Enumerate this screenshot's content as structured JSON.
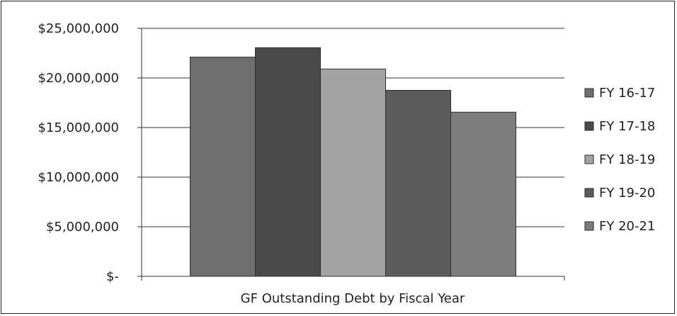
{
  "chart_data": {
    "type": "bar",
    "xlabel": "GF Outstanding Debt by Fiscal Year",
    "ylabel": "",
    "title": "",
    "ylim": [
      0,
      25000000
    ],
    "y_ticks": [
      {
        "value": 0,
        "label": "$-"
      },
      {
        "value": 5000000,
        "label": "$5,000,000"
      },
      {
        "value": 10000000,
        "label": "$10,000,000"
      },
      {
        "value": 15000000,
        "label": "$15,000,000"
      },
      {
        "value": 20000000,
        "label": "$20,000,000"
      },
      {
        "value": 25000000,
        "label": "$25,000,000"
      }
    ],
    "grid": true,
    "legend_position": "right",
    "series": [
      {
        "name": "FY 16-17",
        "value": 22100000,
        "color": "#6e6e6e"
      },
      {
        "name": "FY 17-18",
        "value": 23050000,
        "color": "#4a4a4a"
      },
      {
        "name": "FY 18-19",
        "value": 20900000,
        "color": "#a3a3a3"
      },
      {
        "name": "FY 19-20",
        "value": 18750000,
        "color": "#5c5c5c"
      },
      {
        "name": "FY 20-21",
        "value": 16550000,
        "color": "#7c7c7c"
      }
    ]
  }
}
